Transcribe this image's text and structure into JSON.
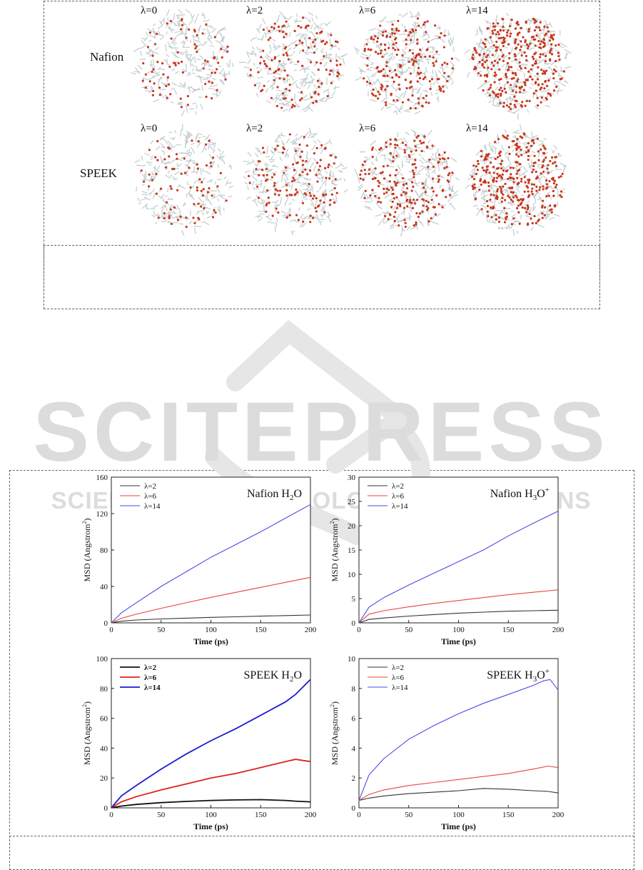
{
  "figure_top": {
    "rows": [
      {
        "label": "Nafion",
        "lambdas": [
          "λ=0",
          "λ=2",
          "λ=6",
          "λ=14"
        ]
      },
      {
        "label": "SPEEK",
        "lambdas": [
          "λ=0",
          "λ=2",
          "λ=6",
          "λ=14"
        ]
      }
    ],
    "colors": {
      "cluster_gray": "#b9c7c9",
      "oxygen_red": "#c8361d"
    }
  },
  "watermark": {
    "main": "SCITEPRESS",
    "sub": "SCIENCE AND TECHNOLOGY PUBLICATIONS",
    "color": "#d9d9d9"
  },
  "chart_data": [
    {
      "type": "line",
      "title": "Nafion H2O",
      "title_parts": {
        "base": "Nafion H",
        "sub": "2",
        "end": "O",
        "sup": ""
      },
      "xlabel": "Time (ps)",
      "ylabel_base": "MSD (Angstrom",
      "ylabel_sup": "2",
      "ylabel_end": ")",
      "xlim": [
        0,
        200
      ],
      "ylim": [
        0,
        160
      ],
      "xticks": [
        0,
        50,
        100,
        150,
        200
      ],
      "yticks": [
        0,
        40,
        80,
        120,
        160
      ],
      "legend_placement": "top-left",
      "series": [
        {
          "name": "λ=2",
          "color": "#333333",
          "x": [
            0,
            10,
            25,
            50,
            75,
            100,
            125,
            150,
            175,
            200
          ],
          "y": [
            0,
            1.8,
            3.1,
            4.3,
            5.2,
            6.0,
            6.7,
            7.4,
            8.0,
            8.6
          ]
        },
        {
          "name": "λ=6",
          "color": "#e8453c",
          "x": [
            0,
            10,
            25,
            50,
            75,
            100,
            125,
            150,
            175,
            200
          ],
          "y": [
            0,
            5,
            9.5,
            16,
            22,
            28,
            33.5,
            39,
            44.5,
            50
          ]
        },
        {
          "name": "λ=14",
          "color": "#4a4ae8",
          "x": [
            0,
            10,
            25,
            50,
            75,
            100,
            125,
            150,
            175,
            200
          ],
          "y": [
            0,
            11,
            22,
            40,
            56,
            72,
            86,
            100,
            115,
            130
          ]
        }
      ]
    },
    {
      "type": "line",
      "title": "Nafion H3O+",
      "title_parts": {
        "base": "Nafion H",
        "sub": "3",
        "end": "O",
        "sup": "+"
      },
      "xlabel": "Time (ps)",
      "ylabel_base": "MSD (Angstrom",
      "ylabel_sup": "2",
      "ylabel_end": ")",
      "xlim": [
        0,
        200
      ],
      "ylim": [
        0,
        30
      ],
      "xticks": [
        0,
        50,
        100,
        150,
        200
      ],
      "yticks": [
        0,
        5,
        10,
        15,
        20,
        25,
        30
      ],
      "legend_placement": "top-left",
      "series": [
        {
          "name": "λ=2",
          "color": "#333333",
          "x": [
            0,
            10,
            25,
            50,
            75,
            100,
            125,
            150,
            175,
            200
          ],
          "y": [
            0,
            0.7,
            1.0,
            1.4,
            1.7,
            2.0,
            2.2,
            2.4,
            2.5,
            2.6
          ]
        },
        {
          "name": "λ=6",
          "color": "#e8453c",
          "x": [
            0,
            10,
            25,
            50,
            75,
            100,
            125,
            150,
            175,
            200
          ],
          "y": [
            0,
            1.8,
            2.5,
            3.3,
            4.0,
            4.6,
            5.2,
            5.8,
            6.3,
            6.8
          ]
        },
        {
          "name": "λ=14",
          "color": "#4a4ae8",
          "x": [
            0,
            10,
            25,
            50,
            75,
            100,
            125,
            150,
            175,
            200
          ],
          "y": [
            0,
            3.2,
            5.2,
            7.8,
            10.2,
            12.6,
            15.0,
            17.9,
            20.5,
            23.0
          ]
        }
      ]
    },
    {
      "type": "line",
      "title": "SPEEK H2O",
      "title_parts": {
        "base": "SPEEK H",
        "sub": "2",
        "end": "O",
        "sup": ""
      },
      "xlabel": "Time (ps)",
      "ylabel_base": "MSD (Angstrom",
      "ylabel_sup": "2",
      "ylabel_end": ")",
      "xlim": [
        0,
        200
      ],
      "ylim": [
        0,
        100
      ],
      "xticks": [
        0,
        50,
        100,
        150,
        200
      ],
      "yticks": [
        0,
        20,
        40,
        60,
        80,
        100
      ],
      "legend_placement": "top-left",
      "series": [
        {
          "name": "λ=2",
          "color": "#111111",
          "x": [
            0,
            10,
            25,
            50,
            75,
            100,
            125,
            150,
            175,
            185,
            200
          ],
          "y": [
            0,
            1.2,
            2.3,
            3.5,
            4.3,
            5.0,
            5.3,
            5.5,
            5.0,
            4.5,
            4.0
          ]
        },
        {
          "name": "λ=6",
          "color": "#e02020",
          "x": [
            0,
            10,
            25,
            50,
            75,
            100,
            125,
            150,
            175,
            185,
            200
          ],
          "y": [
            0,
            4,
            7.5,
            12,
            16,
            20,
            23,
            27,
            31,
            32.5,
            31
          ]
        },
        {
          "name": "λ=14",
          "color": "#1a1ad6",
          "x": [
            0,
            10,
            25,
            50,
            75,
            100,
            125,
            150,
            175,
            185,
            200
          ],
          "y": [
            0,
            8,
            15,
            26,
            36,
            45,
            53,
            62,
            71,
            76,
            86
          ]
        }
      ]
    },
    {
      "type": "line",
      "title": "SPEEK H3O+",
      "title_parts": {
        "base": "SPEEK H",
        "sub": "3",
        "end": "O",
        "sup": "+"
      },
      "xlabel": "Time (ps)",
      "ylabel_base": "MSD (Angstrom",
      "ylabel_sup": "2",
      "ylabel_end": ")",
      "xlim": [
        0,
        200
      ],
      "ylim": [
        0,
        10
      ],
      "xticks": [
        0,
        50,
        100,
        150,
        200
      ],
      "yticks": [
        0,
        2,
        4,
        6,
        8,
        10
      ],
      "legend_placement": "top-left",
      "series": [
        {
          "name": "λ=2",
          "color": "#333333",
          "x": [
            0,
            10,
            25,
            50,
            75,
            100,
            125,
            150,
            175,
            190,
            200
          ],
          "y": [
            0.5,
            0.65,
            0.8,
            0.95,
            1.05,
            1.15,
            1.3,
            1.25,
            1.15,
            1.1,
            1.0
          ]
        },
        {
          "name": "λ=6",
          "color": "#e8453c",
          "x": [
            0,
            10,
            25,
            50,
            75,
            100,
            125,
            150,
            175,
            190,
            200
          ],
          "y": [
            0.5,
            0.9,
            1.2,
            1.5,
            1.7,
            1.9,
            2.1,
            2.3,
            2.6,
            2.8,
            2.7
          ]
        },
        {
          "name": "λ=14",
          "color": "#4a4ae8",
          "x": [
            0,
            10,
            25,
            50,
            75,
            100,
            125,
            150,
            175,
            185,
            192,
            200
          ],
          "y": [
            0.5,
            2.2,
            3.3,
            4.6,
            5.5,
            6.3,
            7.0,
            7.6,
            8.2,
            8.5,
            8.6,
            7.9
          ]
        }
      ]
    }
  ]
}
